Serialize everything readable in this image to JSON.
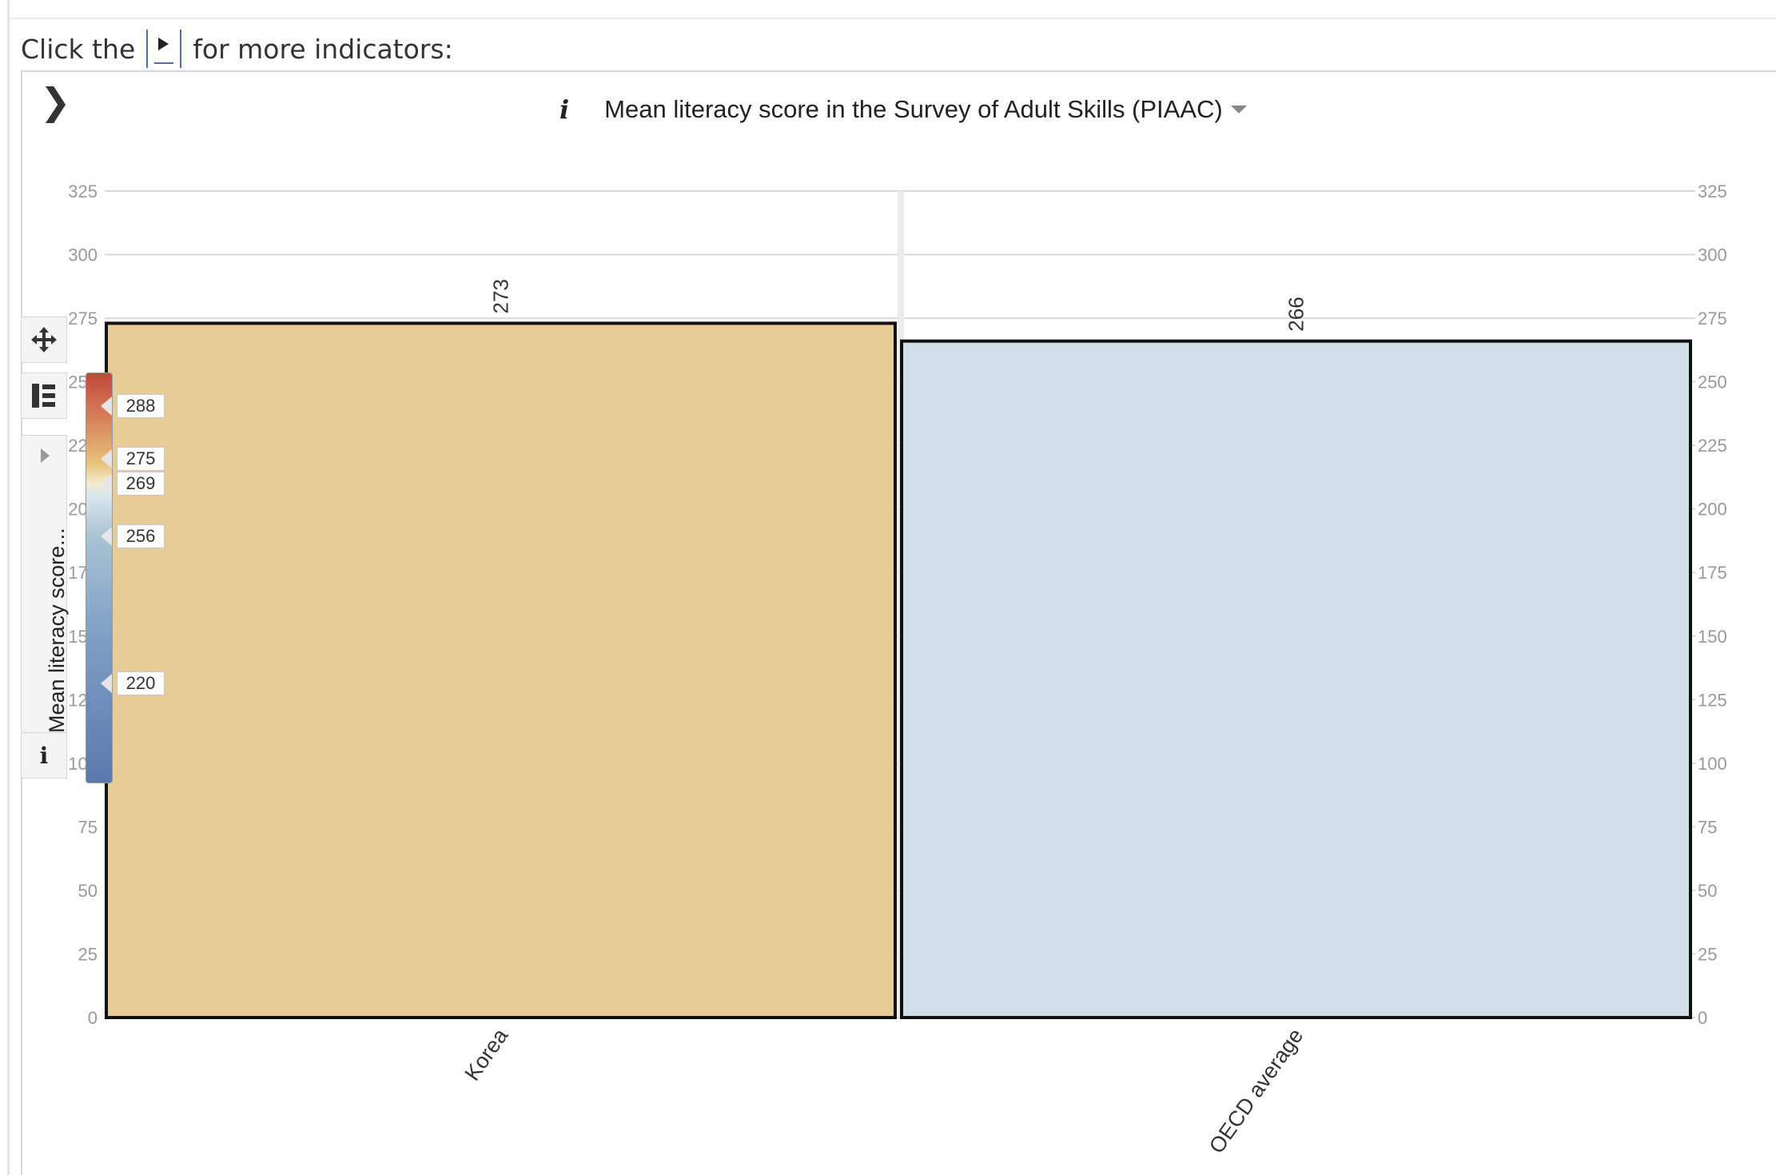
{
  "intro": {
    "before": "Click the",
    "after": "for more indicators:"
  },
  "toolbar": {
    "collapse_icon": "chevron-right-icon",
    "info_icon": "info-italic-icon",
    "move_icon": "move-arrows-icon",
    "layout_icon": "legend-layout-icon"
  },
  "legend": {
    "label": "Mean literacy score...",
    "info": "i",
    "scale_values": [
      288,
      275,
      269,
      256,
      220
    ]
  },
  "colors": {
    "korea": "#e8cc96",
    "oecd": "#d0dfe5",
    "bar_border": "#111111",
    "grid": "#d9d9d9"
  },
  "chart_data": {
    "type": "bar",
    "title": "Mean literacy score in the Survey of Adult Skills (PIAAC)",
    "categories": [
      "Korea",
      "OECD average"
    ],
    "values": [
      273,
      266
    ],
    "value_labels": [
      "273",
      "266"
    ],
    "ylim": [
      0,
      325
    ],
    "yticks": [
      0,
      25,
      50,
      75,
      100,
      125,
      150,
      175,
      200,
      225,
      250,
      275,
      300,
      325
    ],
    "ytick_labels": [
      "0",
      "25",
      "50",
      "75",
      "100",
      "125",
      "150",
      "175",
      "200",
      "225",
      "250",
      "275",
      "300",
      "325"
    ],
    "xlabel": "",
    "ylabel": "",
    "grid": true,
    "axes": "left-and-right"
  }
}
